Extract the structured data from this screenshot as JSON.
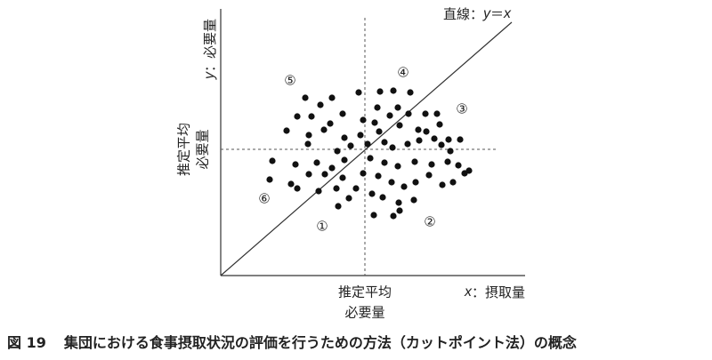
{
  "line_label": {
    "prefix": "直線：",
    "y": "y",
    "eq": "＝",
    "x": "x"
  },
  "y_axis": {
    "var": "y",
    "label": "：必要量",
    "reference": [
      "推定平均",
      "必要量"
    ]
  },
  "x_axis": {
    "var": "x",
    "label": "：摂取量",
    "reference": [
      "推定平均",
      "必要量"
    ]
  },
  "regions": [
    "①",
    "②",
    "③",
    "④",
    "⑤",
    "⑥"
  ],
  "caption": {
    "number": "図 19",
    "text": "集団における食事摂取状況の評価を行うための方法（カットポイント法）の概念"
  }
}
